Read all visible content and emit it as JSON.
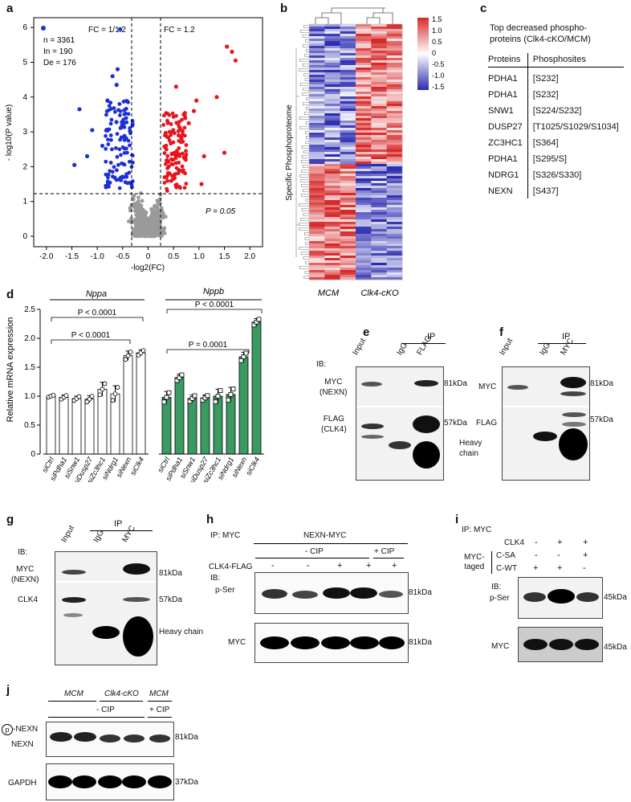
{
  "panels": {
    "a": "a",
    "b": "b",
    "c": "c",
    "d": "d",
    "e": "e",
    "f": "f",
    "g": "g",
    "h": "h",
    "i": "i",
    "j": "j"
  },
  "volcano": {
    "n_label": "n = 3361",
    "in_label": "In = 190",
    "de_label": "De = 176",
    "fc_left": "FC = 1/1.2",
    "fc_right": "FC = 1.2",
    "p_label": "P = 0.05",
    "ylabel": "- log10(P value)",
    "xlabel": "-log2(FC)",
    "xticks": [
      "-2.0",
      "-1.5",
      "-1.0",
      "-0.5",
      "0",
      "0.5",
      "1.0",
      "1.5",
      "2.0"
    ],
    "yticks": [
      "0",
      "1",
      "2",
      "3",
      "4",
      "5",
      "6"
    ],
    "colors": {
      "up": "#e8141c",
      "down": "#1d2fd6",
      "ns": "#9a9a9a"
    }
  },
  "heatmap": {
    "ylabel": "Specific Phosphoproteome",
    "col_labels": [
      "MCM",
      "Clk4-cKO"
    ],
    "scale_ticks": [
      "1.5",
      "1.0",
      "0.5",
      "0",
      "-0.5",
      "-1.0",
      "-1.5"
    ]
  },
  "phospho_table": {
    "title_line1": "Top decreased phospho-",
    "title_line2": "proteins (Clk4-cKO/MCM)",
    "headers": [
      "Proteins",
      "Phosphosites"
    ],
    "rows": [
      [
        "PDHA1",
        "[S232]"
      ],
      [
        "PDHA1",
        "[S232]"
      ],
      [
        "SNW1",
        "[S224/S232]"
      ],
      [
        "DUSP27",
        "[T1025/S1029/S1034]"
      ],
      [
        "ZC3HC1",
        "[S364]"
      ],
      [
        "PDHA1",
        "[S295/S]"
      ],
      [
        "NDRG1",
        "[S326/S330]"
      ],
      [
        "NEXN",
        "[S437]"
      ]
    ]
  },
  "chart_data": {
    "type": "bar",
    "ylabel": "Relative mRNA expression",
    "ylim": [
      0,
      2.5
    ],
    "yticks": [
      "0",
      "0.5",
      "1.0",
      "1.5",
      "2.0",
      "2.5"
    ],
    "groups": [
      {
        "name": "Nppa",
        "color": "#ffffff",
        "categories": [
          "siCtrl",
          "siPdha1",
          "siSnw1",
          "siDusp27",
          "siZc3hc1",
          "siNdrg1",
          "siNexn",
          "siClk4"
        ],
        "values": [
          1.0,
          0.98,
          0.96,
          0.95,
          1.12,
          1.04,
          1.7,
          1.75
        ],
        "errors": [
          0.02,
          0.04,
          0.04,
          0.06,
          0.12,
          0.14,
          0.08,
          0.05
        ]
      },
      {
        "name": "Nppb",
        "color": "#3a9a62",
        "categories": [
          "siCtrl",
          "siPdha1",
          "siSnw1",
          "siDusp27",
          "siZc3hc1",
          "siNdrg1",
          "siNexn",
          "siClk4"
        ],
        "values": [
          0.98,
          1.32,
          0.96,
          0.97,
          1.0,
          1.03,
          1.68,
          2.28
        ],
        "errors": [
          0.1,
          0.06,
          0.06,
          0.05,
          0.12,
          0.12,
          0.08,
          0.06
        ]
      }
    ],
    "annotations": {
      "nppa_p1": "P < 0.0001",
      "nppa_p2": "P < 0.0001",
      "nppb_p1": "P < 0.0001",
      "nppb_p2": "P = 0.0001"
    }
  },
  "blot_e": {
    "ib": "IB:",
    "ip": "IP",
    "lanes": [
      "Input",
      "IgG",
      "FLAG"
    ],
    "rows": [
      "MYC",
      "(NEXN)",
      "FLAG",
      "(CLK4)"
    ],
    "mw": [
      "81kDa",
      "57kDa"
    ],
    "heavy": [
      "Heavy",
      "chain"
    ]
  },
  "blot_f": {
    "ip": "IP",
    "lanes": [
      "Input",
      "IgG",
      "MYC"
    ],
    "rows": [
      "MYC",
      "FLAG"
    ],
    "mw": [
      "81kDa",
      "57kDa"
    ]
  },
  "blot_g": {
    "ib": "IB:",
    "ip": "IP",
    "lanes": [
      "Input",
      "IgG",
      "MYC"
    ],
    "rows": [
      "MYC",
      "(NEXN)",
      "CLK4"
    ],
    "mw": [
      "81kDa",
      "57kDa"
    ],
    "heavy": "Heavy chain"
  },
  "blot_h": {
    "ip": "IP: MYC",
    "construct": "NEXN-MYC",
    "cip_minus": "- CIP",
    "cip_plus": "+ CIP",
    "clk4": "CLK4-FLAG",
    "signs": [
      "-",
      "-",
      "+",
      "+",
      "+"
    ],
    "ib": "IB:",
    "rows": [
      "p-Ser",
      "MYC"
    ],
    "mw": [
      "81kDa",
      "81kDa"
    ]
  },
  "blot_i": {
    "ip": "IP: MYC",
    "clk4": "CLK4",
    "clk4_signs": [
      "-",
      "+",
      "+"
    ],
    "myc1": "MYC-",
    "myc2": "taged",
    "csa": "C-SA",
    "csa_signs": [
      "-",
      "-",
      "+"
    ],
    "cwt": "C-WT",
    "cwt_signs": [
      "+",
      "+",
      "-"
    ],
    "ib": "IB:",
    "rows": [
      "p-Ser",
      "MYC"
    ],
    "mw": [
      "45kDa",
      "45kDa"
    ]
  },
  "blot_j": {
    "groups": [
      "MCM",
      "Clk4-cKO",
      "MCM"
    ],
    "cip_minus": "- CIP",
    "cip_plus": "+ CIP",
    "p_mark": "p",
    "rows": [
      "-NEXN",
      "NEXN",
      "GAPDH"
    ],
    "mw": [
      "81kDa",
      "37kDa"
    ]
  }
}
